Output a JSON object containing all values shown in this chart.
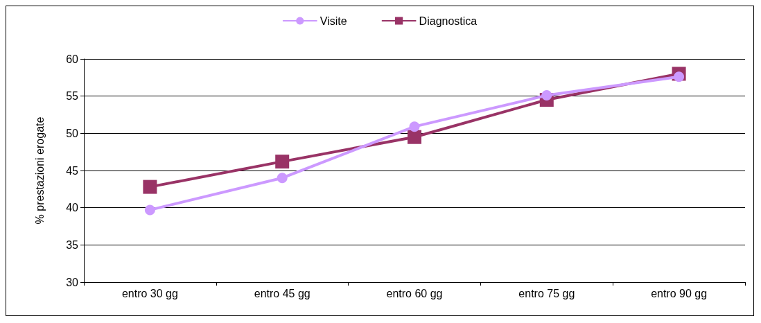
{
  "chart_data": {
    "type": "line",
    "ylabel": "% prestazioni erogate",
    "categories": [
      "entro 30 gg",
      "entro 45 gg",
      "entro 60 gg",
      "entro 75 gg",
      "entro 90 gg"
    ],
    "series": [
      {
        "name": "Visite",
        "color": "#cc99ff",
        "marker": "circle",
        "values": [
          39.7,
          44.0,
          50.9,
          55.1,
          57.6
        ]
      },
      {
        "name": "Diagnostica",
        "color": "#993366",
        "marker": "square",
        "values": [
          42.8,
          46.2,
          49.5,
          54.5,
          58.0
        ]
      }
    ],
    "ylim": [
      30,
      60
    ],
    "yticks": [
      30,
      35,
      40,
      45,
      50,
      55,
      60
    ],
    "grid": "y",
    "legend": "top",
    "line_style": "solid"
  }
}
